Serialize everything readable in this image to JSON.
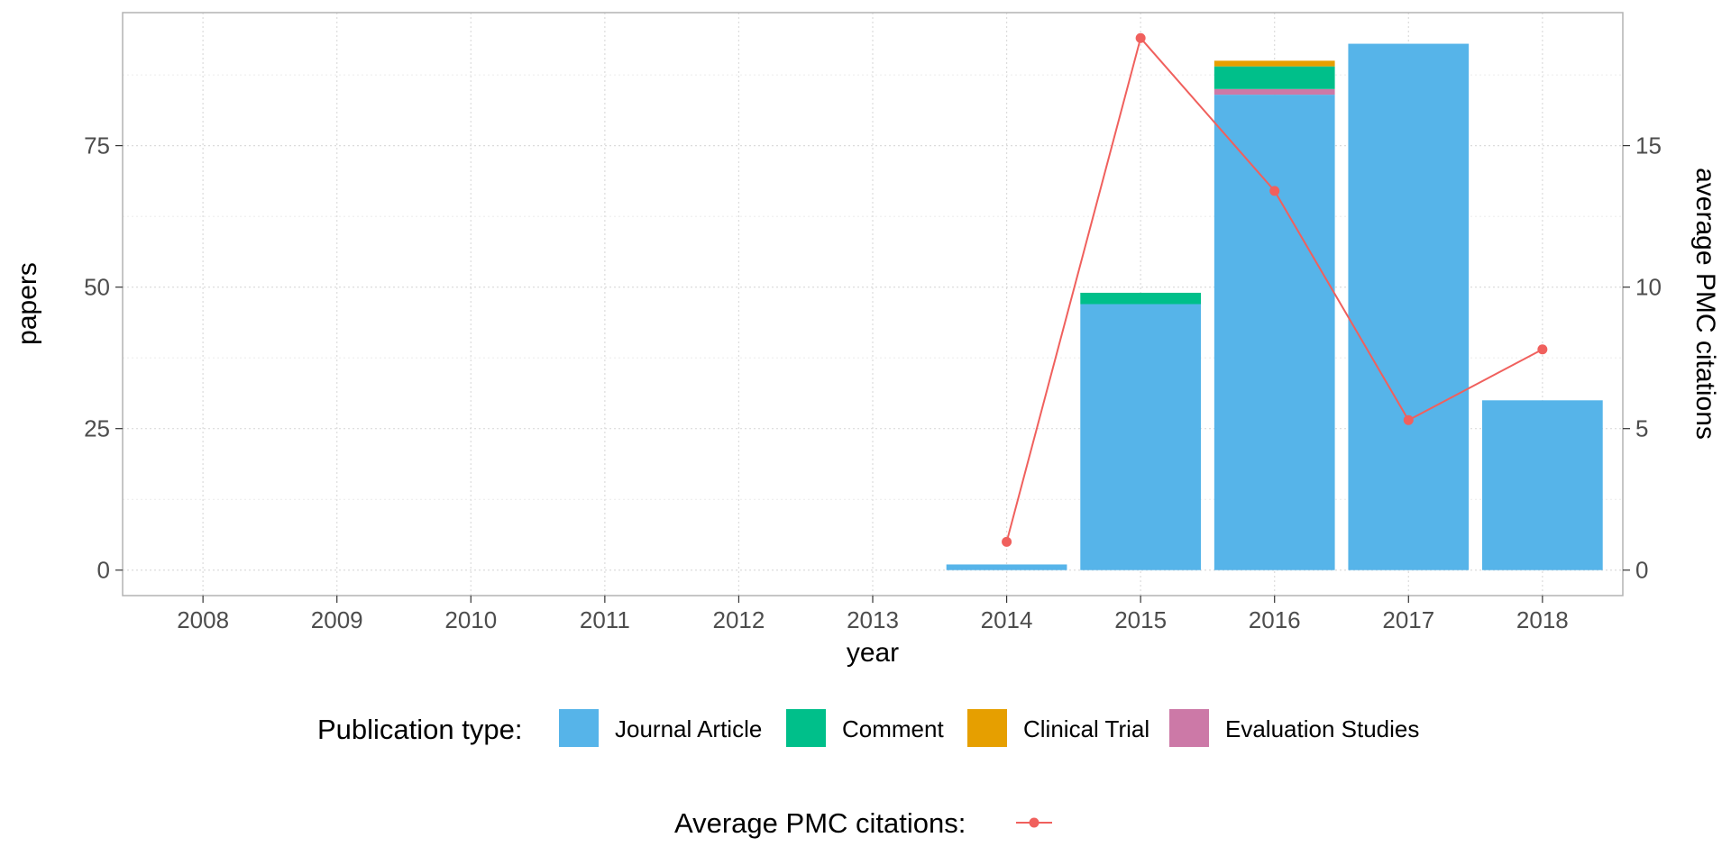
{
  "chart_data": {
    "type": "bar",
    "title": "",
    "xlabel": "year",
    "ylabel": "papers",
    "y2label": "average PMC citations",
    "categories": [
      "2008",
      "2009",
      "2010",
      "2011",
      "2012",
      "2013",
      "2014",
      "2015",
      "2016",
      "2017",
      "2018"
    ],
    "ylim": [
      -4.5,
      98.5
    ],
    "yticks": [
      0,
      25,
      50,
      75
    ],
    "y2lim": [
      -0.9,
      19.7
    ],
    "y2ticks": [
      0,
      5,
      10,
      15
    ],
    "series": [
      {
        "name": "Journal Article",
        "color": "#56B4E9",
        "values": [
          0,
          0,
          0,
          0,
          0,
          0,
          1,
          47,
          84,
          93,
          30
        ]
      },
      {
        "name": "Evaluation Studies",
        "color": "#CC79A7",
        "values": [
          0,
          0,
          0,
          0,
          0,
          0,
          0,
          0,
          1,
          0,
          0
        ]
      },
      {
        "name": "Comment",
        "color": "#00BF8A",
        "values": [
          0,
          0,
          0,
          0,
          0,
          0,
          0,
          2,
          4,
          0,
          0
        ]
      },
      {
        "name": "Clinical Trial",
        "color": "#E69F00",
        "values": [
          0,
          0,
          0,
          0,
          0,
          0,
          0,
          0,
          1,
          0,
          0
        ]
      }
    ],
    "line_series": {
      "name": "Average PMC citations",
      "color": "#F0605D",
      "x": [
        "2014",
        "2015",
        "2016",
        "2017",
        "2018"
      ],
      "values": [
        1.0,
        18.8,
        13.4,
        5.3,
        7.8
      ]
    },
    "grid": true,
    "legend_position": "bottom"
  },
  "legend": {
    "publication_title": "Publication type:",
    "publication_items": [
      {
        "label": "Journal Article",
        "color": "#56B4E9"
      },
      {
        "label": "Comment",
        "color": "#00BF8A"
      },
      {
        "label": "Clinical Trial",
        "color": "#E69F00"
      },
      {
        "label": "Evaluation Studies",
        "color": "#CC79A7"
      }
    ],
    "citations_title": "Average PMC citations:",
    "citations_color": "#F0605D"
  }
}
